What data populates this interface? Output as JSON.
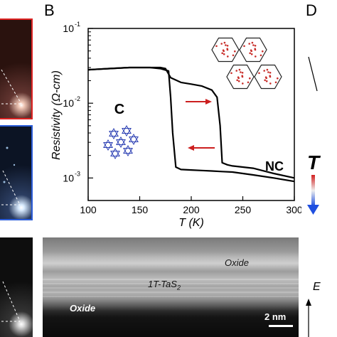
{
  "panels": {
    "b_letter": "B",
    "d_letter": "D",
    "t_symbol": "T",
    "e_symbol": "E"
  },
  "chart": {
    "y_title": "Resistivity (Ω-cm)",
    "x_title": "T (K)",
    "x_ticks": [
      "100",
      "150",
      "200",
      "250",
      "300"
    ],
    "y_tick_bases": [
      "10",
      "10",
      "10"
    ],
    "y_tick_exps": [
      "-1",
      "-2",
      "-3"
    ],
    "label_c": "C",
    "label_nc": "NC"
  },
  "tem": {
    "oxide_top": "Oxide",
    "material": "1T-TaS",
    "material_sub": "2",
    "oxide_bottom": "Oxide",
    "scale_bar": "2 nm"
  },
  "colors": {
    "heating_arrow": "#cc1f1f",
    "lattice_c": "#2b3fb3",
    "lattice_nc": "#c9302c",
    "thermo_hot": "#d22020",
    "thermo_cold": "#1f4fe0"
  },
  "chart_data": {
    "type": "line",
    "xlabel": "T (K)",
    "ylabel": "Resistivity (Ω-cm)",
    "xlim": [
      100,
      300
    ],
    "ylim": [
      0.0005,
      0.1
    ],
    "yscale": "log",
    "x_ticks": [
      100,
      150,
      200,
      250,
      300
    ],
    "y_ticks": [
      0.001,
      0.01,
      0.1
    ],
    "series": [
      {
        "x": [
          100,
          120,
          140,
          160,
          170,
          178,
          180,
          182,
          185,
          190,
          200,
          210,
          220,
          230,
          240,
          250,
          260,
          280,
          300
        ],
        "y": [
          0.028,
          0.029,
          0.03,
          0.03,
          0.029,
          0.027,
          0.012,
          0.004,
          0.0014,
          0.0013,
          0.00128,
          0.00126,
          0.00124,
          0.00122,
          0.0012,
          0.00115,
          0.0011,
          0.001,
          0.0009
        ]
      },
      {
        "x": [
          100,
          120,
          140,
          160,
          170,
          175,
          180,
          190,
          200,
          210,
          220,
          225,
          228,
          230,
          235,
          240,
          250,
          260,
          280,
          300
        ],
        "y": [
          0.028,
          0.029,
          0.03,
          0.03,
          0.03,
          0.029,
          0.022,
          0.019,
          0.018,
          0.017,
          0.015,
          0.012,
          0.005,
          0.0016,
          0.0015,
          0.00145,
          0.0014,
          0.00135,
          0.00115,
          0.001
        ]
      }
    ]
  }
}
